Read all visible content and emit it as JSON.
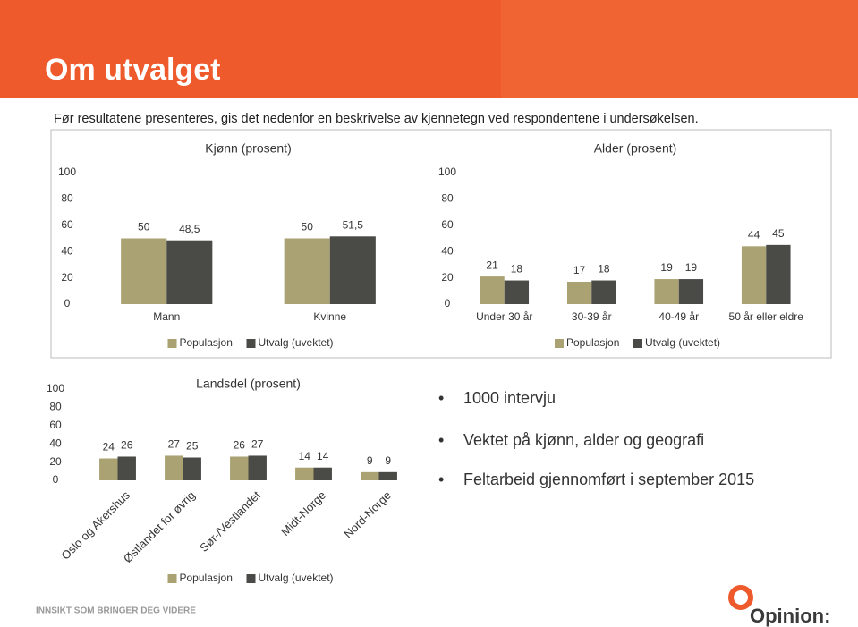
{
  "title": "Om utvalget",
  "intro": "Før resultatene presenteres, gis det nedenfor en beskrivelse av kjennetegn ved respondentene i undersøkelsen.",
  "chart_data": [
    {
      "type": "bar",
      "title": "Kjønn (prosent)",
      "categories": [
        "Mann",
        "Kvinne"
      ],
      "series": [
        {
          "name": "Populasjon",
          "color": "#aaa272",
          "values": [
            50,
            50
          ]
        },
        {
          "name": "Utvalg (uvektet)",
          "color": "#4a4a46",
          "values": [
            48.5,
            51.5
          ],
          "value_labels": [
            "48,5",
            "51,5"
          ]
        }
      ],
      "ylim": [
        0,
        100
      ],
      "yticks": [
        0,
        20,
        40,
        60,
        80,
        100
      ]
    },
    {
      "type": "bar",
      "title": "Alder (prosent)",
      "categories": [
        "Under 30 år",
        "30-39 år",
        "40-49 år",
        "50 år eller eldre"
      ],
      "series": [
        {
          "name": "Populasjon",
          "color": "#aaa272",
          "values": [
            21,
            17,
            19,
            44
          ]
        },
        {
          "name": "Utvalg (uvektet)",
          "color": "#4a4a46",
          "values": [
            18,
            18,
            19,
            45
          ]
        }
      ],
      "ylim": [
        0,
        100
      ],
      "yticks": [
        0,
        20,
        40,
        60,
        80,
        100
      ]
    },
    {
      "type": "bar",
      "title": "Landsdel (prosent)",
      "categories": [
        "Oslo og Akershus",
        "Østlandet for øvrig",
        "Sør-/Vestlandet",
        "Midt-Norge",
        "Nord-Norge"
      ],
      "series": [
        {
          "name": "Populasjon",
          "color": "#aaa272",
          "values": [
            24,
            27,
            26,
            14,
            9
          ]
        },
        {
          "name": "Utvalg (uvektet)",
          "color": "#4a4a46",
          "values": [
            26,
            25,
            27,
            14,
            9
          ]
        }
      ],
      "ylim": [
        0,
        100
      ],
      "yticks": [
        0,
        20,
        40,
        60,
        80,
        100
      ]
    }
  ],
  "bullets": [
    "1000 intervju",
    "Vektet på kjønn, alder og geografi",
    "Feltarbeid gjennomført i september 2015"
  ],
  "footer": "INNSIKT SOM BRINGER DEG VIDERE",
  "logo": "Opinion:"
}
